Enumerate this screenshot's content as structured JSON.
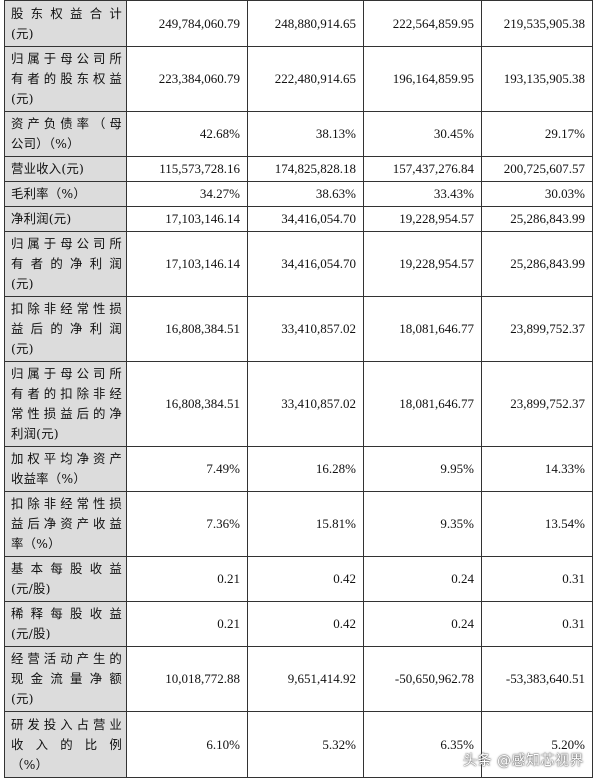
{
  "rows": [
    {
      "label_lines": [
        "股东权益合计",
        "(元)"
      ],
      "values": [
        "249,784,060.79",
        "248,880,914.65",
        "222,564,859.95",
        "219,535,905.38"
      ]
    },
    {
      "label_lines": [
        "归属于母公司所",
        "有者的股东权益",
        "(元)"
      ],
      "values": [
        "223,384,060.79",
        "222,480,914.65",
        "196,164,859.95",
        "193,135,905.38"
      ]
    },
    {
      "label_lines": [
        "资产负债率（母",
        "公司）（%）"
      ],
      "values": [
        "42.68%",
        "38.13%",
        "30.45%",
        "29.17%"
      ]
    },
    {
      "label_lines": [
        "营业收入(元)"
      ],
      "values": [
        "115,573,728.16",
        "174,825,828.18",
        "157,437,276.84",
        "200,725,607.57"
      ]
    },
    {
      "label_lines": [
        "毛利率（%）"
      ],
      "values": [
        "34.27%",
        "38.63%",
        "33.43%",
        "30.03%"
      ]
    },
    {
      "label_lines": [
        "净利润(元)"
      ],
      "values": [
        "17,103,146.14",
        "34,416,054.70",
        "19,228,954.57",
        "25,286,843.99"
      ]
    },
    {
      "label_lines": [
        "归属于母公司所",
        "有者的净利润",
        "(元)"
      ],
      "values": [
        "17,103,146.14",
        "34,416,054.70",
        "19,228,954.57",
        "25,286,843.99"
      ]
    },
    {
      "label_lines": [
        "扣除非经常性损",
        "益后的净利润",
        "(元)"
      ],
      "values": [
        "16,808,384.51",
        "33,410,857.02",
        "18,081,646.77",
        "23,899,752.37"
      ]
    },
    {
      "label_lines": [
        "归属于母公司所",
        "有者的扣除非经",
        "常性损益后的净",
        "利润(元)"
      ],
      "values": [
        "16,808,384.51",
        "33,410,857.02",
        "18,081,646.77",
        "23,899,752.37"
      ]
    },
    {
      "label_lines": [
        "加权平均净资产",
        "收益率（%）"
      ],
      "values": [
        "7.49%",
        "16.28%",
        "9.95%",
        "14.33%"
      ]
    },
    {
      "label_lines": [
        "扣除非经常性损",
        "益后净资产收益",
        "率（%）"
      ],
      "values": [
        "7.36%",
        "15.81%",
        "9.35%",
        "13.54%"
      ]
    },
    {
      "label_lines": [
        "基本每股收益",
        "(元/股)"
      ],
      "values": [
        "0.21",
        "0.42",
        "0.24",
        "0.31"
      ]
    },
    {
      "label_lines": [
        "稀释每股收益",
        "(元/股)"
      ],
      "values": [
        "0.21",
        "0.42",
        "0.24",
        "0.31"
      ]
    },
    {
      "label_lines": [
        "经营活动产生的",
        "现金流量净额",
        "(元)"
      ],
      "values": [
        "10,018,772.88",
        "9,651,414.92",
        "-50,650,962.78",
        "-53,383,640.51"
      ]
    },
    {
      "label_lines": [
        "研发投入占营业",
        "收入的比例",
        "（%）"
      ],
      "values": [
        "6.10%",
        "5.32%",
        "6.35%",
        "5.20%"
      ]
    }
  ],
  "watermark": "头条 @感知芯视界"
}
